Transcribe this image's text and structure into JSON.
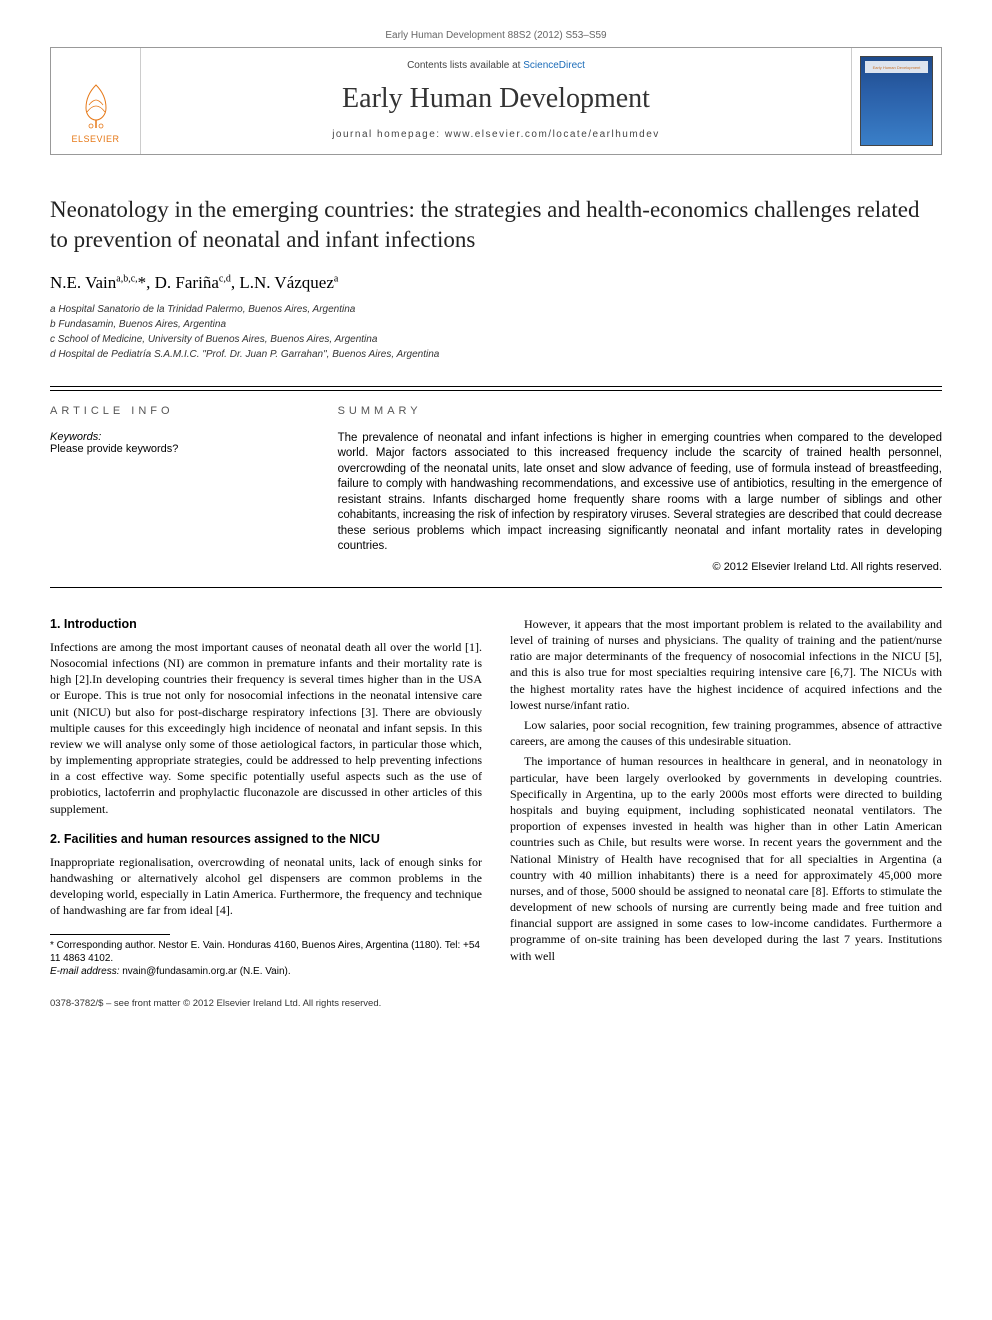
{
  "header": {
    "pagination": "Early Human Development 88S2 (2012) S53–S59",
    "contents_prefix": "Contents lists available at ",
    "contents_link": "ScienceDirect",
    "journal": "Early Human Development",
    "homepage_prefix": "journal homepage: ",
    "homepage_url": "www.elsevier.com/locate/earlhumdev",
    "elsevier": "ELSEVIER",
    "cover_label": "Early Human Development"
  },
  "title": "Neonatology in the emerging countries: the strategies and health-economics challenges related to prevention of neonatal and infant infections",
  "authors_html": "N.E. Vain<sup>a,b,c,</sup>*, D. Fariña<sup>c,d</sup>, L.N. Vázquez<sup>a</sup>",
  "affiliations": [
    "a Hospital Sanatorio de la Trinidad Palermo, Buenos Aires, Argentina",
    "b Fundasamin, Buenos Aires, Argentina",
    "c School of Medicine, University of Buenos Aires, Buenos Aires, Argentina",
    "d Hospital de Pediatría S.A.M.I.C. \"Prof. Dr. Juan P. Garrahan\", Buenos Aires, Argentina"
  ],
  "info": {
    "header": "ARTICLE INFO",
    "keywords_label": "Keywords:",
    "keywords_text": "Please provide keywords?"
  },
  "summary": {
    "header": "SUMMARY",
    "text": "The prevalence of neonatal and infant infections is higher in emerging countries when compared to the developed world. Major factors associated to this increased frequency include the scarcity of trained health personnel, overcrowding of the neonatal units, late onset and slow advance of feeding, use of formula instead of breastfeeding, failure to comply with handwashing recommendations, and excessive use of antibiotics, resulting in the emergence of resistant strains. Infants discharged home frequently share rooms with a large number of siblings and other cohabitants, increasing the risk of infection by respiratory viruses. Several strategies are described that could decrease these serious problems which impact increasing significantly neonatal and infant mortality rates in developing countries.",
    "copyright": "© 2012 Elsevier Ireland Ltd. All rights reserved."
  },
  "body": {
    "h1": "1. Introduction",
    "p1": "Infections are among the most important causes of neonatal death all over the world [1]. Nosocomial infections (NI) are common in premature infants and their mortality rate is high [2].In developing countries their frequency is several times higher than in the USA or Europe. This is true not only for nosocomial infections in the neonatal intensive care unit (NICU) but also for post-discharge respiratory infections [3]. There are obviously multiple causes for this exceedingly high incidence of neonatal and infant sepsis. In this review we will analyse only some of those aetiological factors, in particular those which, by implementing appropriate strategies, could be addressed to help preventing infections in a cost effective way. Some specific potentially useful aspects such as the use of probiotics, lactoferrin and prophylactic fluconazole are discussed in other articles of this supplement.",
    "h2": "2. Facilities and human resources assigned to the NICU",
    "p2": "Inappropriate regionalisation, overcrowding of neonatal units, lack of enough sinks for handwashing or alternatively alcohol gel dispensers are common problems in the developing world, especially in Latin America. Furthermore, the frequency and technique of handwashing are far from ideal [4].",
    "p3": "However, it appears that the most important problem is related to the availability and level of training of nurses and physicians. The quality of training and the patient/nurse ratio are major determinants of the frequency of nosocomial infections in the NICU [5], and this is also true for most specialties requiring intensive care [6,7]. The NICUs with the highest mortality rates have the highest incidence of acquired infections and the lowest nurse/infant ratio.",
    "p4": "Low salaries, poor social recognition, few training programmes, absence of attractive careers, are among the causes of this undesirable situation.",
    "p5": "The importance of human resources in healthcare in general, and in neonatology in particular, have been largely overlooked by governments in developing countries. Specifically in Argentina, up to the early 2000s most efforts were directed to building hospitals and buying equipment, including sophisticated neonatal ventilators. The proportion of expenses invested in health was higher than in other Latin American countries such as Chile, but results were worse. In recent years the government and the National Ministry of Health have recognised that for all specialties in Argentina (a country with 40 million inhabitants) there is a need for approximately 45,000 more nurses, and of those, 5000 should be assigned to neonatal care [8]. Efforts to stimulate the development of new schools of nursing are currently being made and free tuition and financial support are assigned in some cases to low-income candidates. Furthermore a programme of on-site training has been developed during the last 7 years. Institutions with well"
  },
  "footnote": {
    "corr": "* Corresponding author. Nestor E. Vain. Honduras 4160, Buenos Aires, Argentina (1180). Tel: +54 11 4863 4102.",
    "email_label": "E-mail address: ",
    "email": "nvain@fundasamin.org.ar",
    "email_suffix": " (N.E. Vain)."
  },
  "footer": "0378-3782/$ – see front matter © 2012 Elsevier Ireland Ltd. All rights reserved.",
  "colors": {
    "link": "#1a6bb8",
    "elsevier_orange": "#e67817",
    "text": "#000000",
    "rule": "#000000",
    "cover_gradient_top": "#1e4a8a",
    "cover_gradient_bottom": "#3a7fc8"
  }
}
